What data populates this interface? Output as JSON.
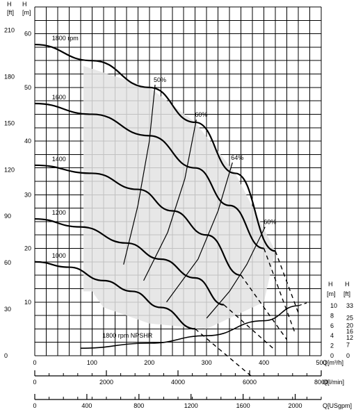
{
  "chart_data": {
    "type": "line",
    "title": "",
    "axes": {
      "left_ft": {
        "unit_label": [
          "H",
          "[ft]"
        ],
        "ticks": [
          "0",
          "30",
          "60",
          "90",
          "120",
          "150",
          "180",
          "210"
        ],
        "range": [
          0,
          225
        ]
      },
      "left_m": {
        "unit_label": [
          "H",
          "[m]"
        ],
        "ticks": [
          "10",
          "20",
          "30",
          "40",
          "50",
          "60"
        ],
        "range": [
          0,
          65
        ]
      },
      "right_m": {
        "unit_label": [
          "H",
          "[m]"
        ],
        "ticks": [
          "0",
          "2",
          "4",
          "6",
          "8",
          "10"
        ],
        "range": [
          0,
          10
        ]
      },
      "right_ft": {
        "unit_label": [
          "H",
          "[ft]"
        ],
        "ticks": [
          "0",
          "7",
          "12",
          "16",
          "20",
          "25",
          "33"
        ],
        "range": [
          0,
          33
        ]
      },
      "x_m3h": {
        "label": "Q[m³/h]",
        "ticks": [
          "0",
          "100",
          "200",
          "300",
          "400",
          "500"
        ],
        "range": [
          0,
          500
        ]
      },
      "x_lmin": {
        "label": "Q[l/min]",
        "ticks": [
          "0",
          "2000",
          "4000",
          "6000",
          "8000"
        ],
        "range": [
          0,
          8000
        ]
      },
      "x_usgpm": {
        "label": "Q[USgpm]",
        "ticks": [
          "0",
          "400",
          "800",
          "1200",
          "1600",
          "2000"
        ],
        "range": [
          0,
          2200
        ]
      }
    },
    "grid": true,
    "shaded_region": "operating range",
    "series": [
      {
        "name": "1800 rpm",
        "x": [
          0,
          100,
          200,
          280,
          350,
          420
        ],
        "y": [
          58,
          55,
          50,
          43.5,
          34,
          19.5
        ]
      },
      {
        "name": "1600",
        "x": [
          0,
          100,
          200,
          280,
          340,
          400
        ],
        "y": [
          47,
          45,
          41,
          35,
          28,
          20
        ]
      },
      {
        "name": "1400",
        "x": [
          0,
          100,
          180,
          240,
          300,
          360
        ],
        "y": [
          35.5,
          34,
          31,
          27,
          22.5,
          15
        ]
      },
      {
        "name": "1200",
        "x": [
          0,
          80,
          160,
          220,
          280,
          330
        ],
        "y": [
          25.5,
          24,
          21,
          18,
          14.5,
          9.5
        ]
      },
      {
        "name": "1000",
        "x": [
          0,
          60,
          120,
          170,
          220,
          280
        ],
        "y": [
          17.5,
          16.5,
          14,
          12,
          9,
          5
        ]
      }
    ],
    "extensions": [
      {
        "x": [
          420,
          460
        ],
        "y": [
          19.5,
          8
        ]
      },
      {
        "x": [
          400,
          455
        ],
        "y": [
          20,
          4
        ]
      },
      {
        "x": [
          360,
          440
        ],
        "y": [
          15,
          3
        ]
      },
      {
        "x": [
          330,
          420
        ],
        "y": [
          9.5,
          1
        ]
      },
      {
        "x": [
          280,
          380
        ],
        "y": [
          5,
          -4
        ]
      }
    ],
    "efficiency_labels": [
      "50%",
      "60%",
      "64%",
      "60%"
    ],
    "npshr": {
      "name": "1800 rpm NPSHR",
      "x": [
        80,
        200,
        300,
        400,
        460
      ],
      "y_m": [
        1.5,
        2.5,
        4,
        7,
        10
      ]
    }
  }
}
